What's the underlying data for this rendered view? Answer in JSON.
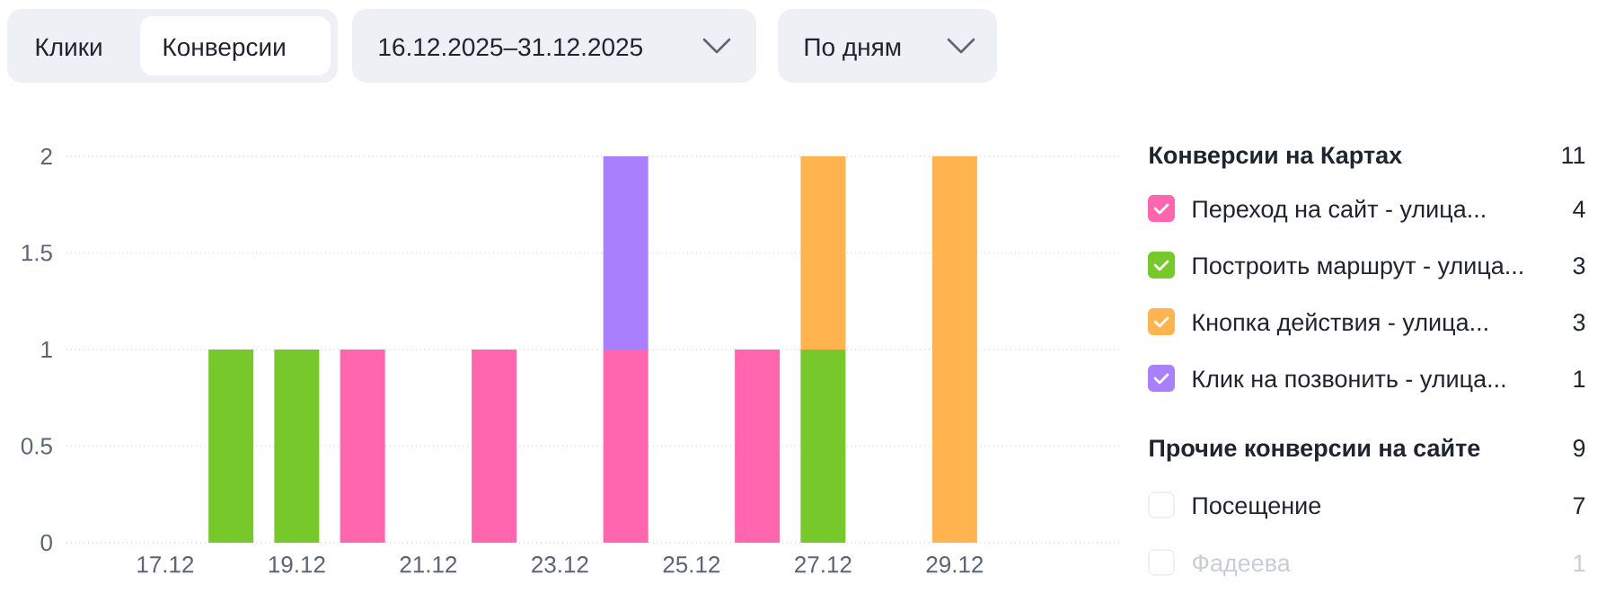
{
  "chart_data": {
    "type": "bar",
    "stacked": true,
    "legend": "right",
    "grid": "y",
    "legend_title": "Конверсии на Картах",
    "categories": [
      null,
      "17.12",
      null,
      "19.12",
      null,
      "21.12",
      null,
      "23.12",
      null,
      "25.12",
      null,
      "27.12",
      null,
      "29.12",
      null,
      null
    ],
    "series": [
      {
        "name": "Переход на сайт - улица...",
        "color": "#ff66ad",
        "values": [
          0,
          0,
          0,
          0,
          1,
          0,
          1,
          0,
          1,
          0,
          1,
          0,
          0,
          0,
          0,
          0
        ]
      },
      {
        "name": "Построить маршрут - улица...",
        "color": "#77c82a",
        "values": [
          0,
          0,
          1,
          1,
          0,
          0,
          0,
          0,
          0,
          0,
          0,
          1,
          0,
          0,
          0,
          0
        ]
      },
      {
        "name": "Кнопка действия - улица...",
        "color": "#ffb44f",
        "values": [
          0,
          0,
          0,
          0,
          0,
          0,
          0,
          0,
          0,
          0,
          0,
          1,
          0,
          2,
          0,
          0
        ]
      },
      {
        "name": "Клик на позвонить - улица...",
        "color": "#a97ffc",
        "values": [
          0,
          0,
          0,
          0,
          0,
          0,
          0,
          0,
          1,
          0,
          0,
          0,
          0,
          0,
          0,
          0
        ]
      }
    ],
    "ylim": [
      0,
      2
    ],
    "yticks": [
      0,
      0.5,
      1,
      1.5,
      2
    ],
    "annotations": [
      "Клики",
      "Конверсии",
      "16.12.2025–31.12.2025",
      "По дням",
      "11",
      "4",
      "3",
      "3",
      "1",
      "Прочие конверсии на сайте",
      "9",
      "Посещение",
      "7",
      "Фадеева",
      "1"
    ]
  }
}
